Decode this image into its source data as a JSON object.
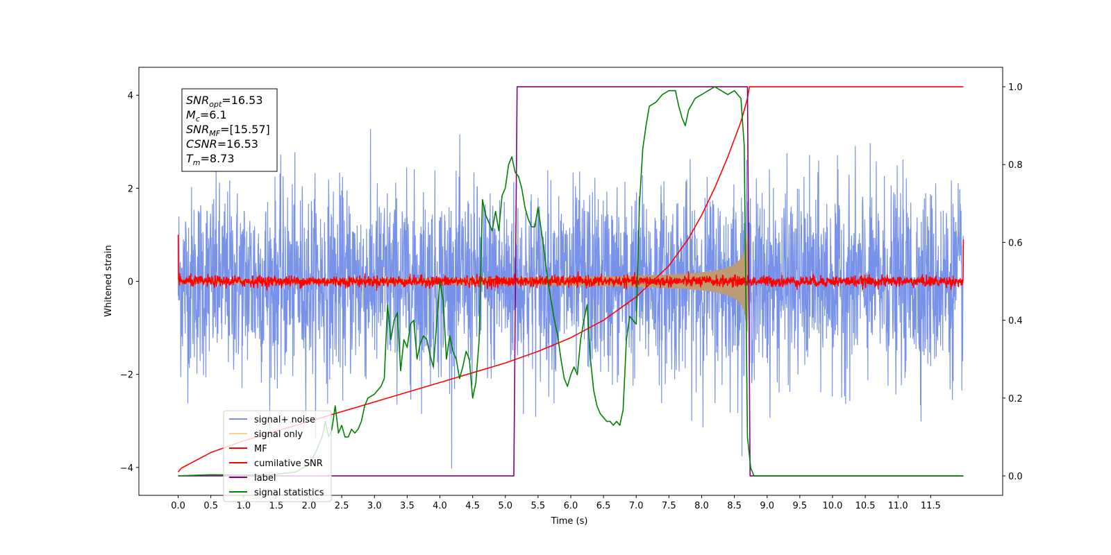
{
  "chart_data": {
    "type": "line",
    "xlabel": "Time (s)",
    "ylabel": "Whitened strain",
    "xlim": [
      -0.6,
      12.6
    ],
    "ylim": [
      -4.6,
      4.6
    ],
    "y2lim": [
      -0.05,
      1.05
    ],
    "x_ticks": [
      "0.0",
      "0.5",
      "1.0",
      "1.5",
      "2.0",
      "2.5",
      "3.0",
      "3.5",
      "4.0",
      "4.5",
      "5.0",
      "5.5",
      "6.0",
      "6.5",
      "7.0",
      "7.5",
      "8.0",
      "8.5",
      "9.0",
      "9.5",
      "10.0",
      "10.5",
      "11.0",
      "11.5"
    ],
    "y_ticks": [
      "4",
      "2",
      "0",
      "−2",
      "−4"
    ],
    "y2_ticks": [
      "1.0",
      "0.8",
      "0.6",
      "0.4",
      "0.2",
      "0.0"
    ],
    "grid": false,
    "legend_position": "lower-left",
    "annotation": {
      "lines": [
        {
          "base": "SNR",
          "sub": "opt",
          "rest": "=16.53"
        },
        {
          "base": "M",
          "sub": "c",
          "rest": "=6.1"
        },
        {
          "base": "SNR",
          "sub": "MF",
          "rest": "=[15.57]"
        },
        {
          "base": "CSNR",
          "sub": "",
          "rest": "=16.53"
        },
        {
          "base": "T",
          "sub": "m",
          "rest": "=8.73"
        }
      ]
    },
    "series": [
      {
        "name": "signal+ noise",
        "color": "#7792e8",
        "axis": "left",
        "kind": "noise",
        "t_start": 0.0,
        "t_end": 12.0,
        "sigma": 1.0,
        "points": 3000
      },
      {
        "name": "signal only",
        "color": "#ffd27f",
        "fill": "#bd9b74",
        "axis": "left",
        "kind": "chirp",
        "t_start": 0.0,
        "t_end": 8.7,
        "t_merge": 8.73,
        "amp_peak": 1.3,
        "amp_start": 0.05
      },
      {
        "name": "MF",
        "color": "#ff0000",
        "axis": "left",
        "kind": "mf",
        "t_start": 0.0,
        "t_end": 12.0,
        "sigma": 0.06,
        "start_value": 1.0,
        "end_value": 0.9
      },
      {
        "name": "cumilative SNR",
        "color": "#ff0000",
        "axis": "right",
        "x": [
          0.0,
          0.05,
          0.5,
          1.0,
          1.5,
          2.0,
          2.5,
          3.0,
          3.5,
          4.0,
          4.5,
          5.0,
          5.5,
          6.0,
          6.5,
          7.0,
          7.5,
          7.8,
          8.0,
          8.2,
          8.4,
          8.6,
          8.7,
          8.73,
          12.0
        ],
        "y": [
          0.01,
          0.02,
          0.06,
          0.09,
          0.115,
          0.14,
          0.165,
          0.19,
          0.215,
          0.24,
          0.265,
          0.29,
          0.32,
          0.355,
          0.4,
          0.46,
          0.54,
          0.61,
          0.67,
          0.74,
          0.82,
          0.91,
          0.97,
          1.0,
          1.0
        ]
      },
      {
        "name": "label",
        "color": "#800080",
        "axis": "right",
        "x": [
          0.0,
          5.13,
          5.18,
          8.7,
          8.74,
          12.0
        ],
        "y": [
          0.0,
          0.0,
          1.0,
          1.0,
          0.0,
          0.0
        ]
      },
      {
        "name": "signal statistics",
        "color": "#008000",
        "axis": "right",
        "x": [
          0.0,
          0.5,
          1.0,
          1.5,
          1.8,
          2.0,
          2.1,
          2.2,
          2.25,
          2.3,
          2.35,
          2.4,
          2.45,
          2.5,
          2.55,
          2.6,
          2.65,
          2.7,
          2.75,
          2.8,
          2.85,
          2.9,
          3.0,
          3.1,
          3.15,
          3.2,
          3.25,
          3.3,
          3.35,
          3.4,
          3.45,
          3.5,
          3.55,
          3.6,
          3.65,
          3.7,
          3.75,
          3.8,
          3.85,
          3.9,
          4.0,
          4.05,
          4.1,
          4.15,
          4.2,
          4.25,
          4.3,
          4.35,
          4.4,
          4.45,
          4.5,
          4.55,
          4.6,
          4.65,
          4.7,
          4.75,
          4.8,
          4.85,
          4.9,
          4.95,
          5.0,
          5.05,
          5.1,
          5.15,
          5.2,
          5.25,
          5.3,
          5.35,
          5.4,
          5.45,
          5.5,
          5.55,
          5.6,
          5.65,
          5.7,
          5.75,
          5.8,
          5.85,
          5.9,
          5.95,
          6.0,
          6.05,
          6.1,
          6.15,
          6.2,
          6.25,
          6.3,
          6.35,
          6.4,
          6.45,
          6.5,
          6.55,
          6.6,
          6.65,
          6.7,
          6.75,
          6.8,
          6.85,
          6.9,
          6.95,
          7.0,
          7.05,
          7.1,
          7.15,
          7.2,
          7.3,
          7.4,
          7.5,
          7.6,
          7.65,
          7.7,
          7.75,
          7.8,
          7.9,
          8.0,
          8.1,
          8.2,
          8.3,
          8.4,
          8.5,
          8.6,
          8.65,
          8.7,
          8.75,
          8.8,
          8.85,
          9.0,
          12.0
        ],
        "y": [
          0.0,
          0.003,
          0.002,
          0.004,
          0.01,
          0.03,
          0.06,
          0.1,
          0.14,
          0.1,
          0.12,
          0.18,
          0.11,
          0.13,
          0.1,
          0.1,
          0.12,
          0.11,
          0.12,
          0.14,
          0.18,
          0.2,
          0.21,
          0.23,
          0.25,
          0.44,
          0.35,
          0.4,
          0.42,
          0.27,
          0.35,
          0.33,
          0.39,
          0.4,
          0.3,
          0.34,
          0.36,
          0.35,
          0.31,
          0.28,
          0.5,
          0.45,
          0.3,
          0.36,
          0.32,
          0.3,
          0.25,
          0.28,
          0.32,
          0.3,
          0.2,
          0.24,
          0.35,
          0.71,
          0.67,
          0.65,
          0.63,
          0.68,
          0.63,
          0.72,
          0.74,
          0.8,
          0.82,
          0.78,
          0.77,
          0.74,
          0.69,
          0.66,
          0.64,
          0.64,
          0.69,
          0.63,
          0.57,
          0.5,
          0.45,
          0.4,
          0.36,
          0.3,
          0.25,
          0.23,
          0.26,
          0.28,
          0.26,
          0.35,
          0.4,
          0.44,
          0.3,
          0.22,
          0.18,
          0.16,
          0.15,
          0.14,
          0.14,
          0.13,
          0.14,
          0.13,
          0.17,
          0.35,
          0.41,
          0.4,
          0.39,
          0.7,
          0.84,
          0.9,
          0.95,
          0.96,
          0.98,
          0.99,
          0.99,
          0.95,
          0.92,
          0.9,
          0.94,
          0.97,
          0.98,
          0.99,
          1.0,
          0.99,
          0.98,
          0.99,
          0.97,
          0.85,
          0.1,
          0.02,
          0.0,
          0.0,
          0.0,
          0.0
        ]
      }
    ]
  }
}
